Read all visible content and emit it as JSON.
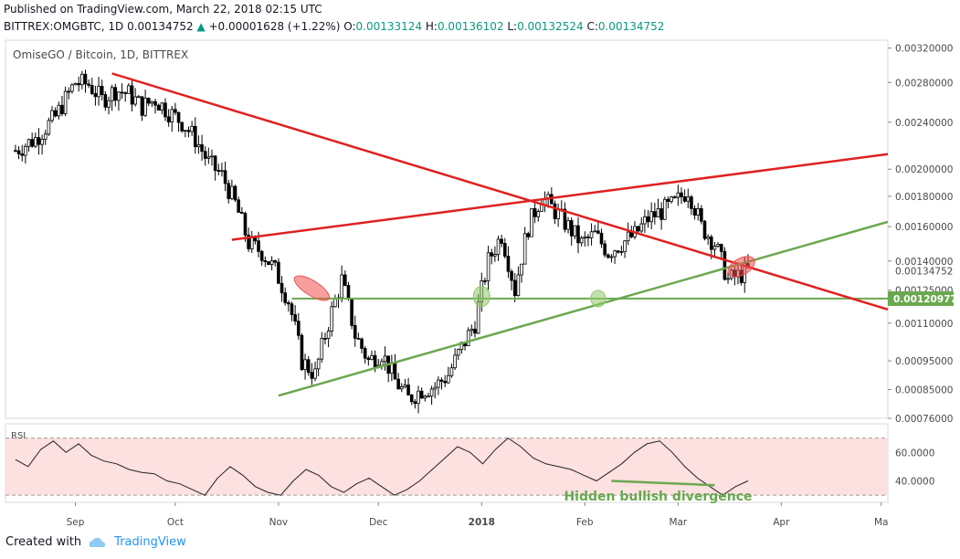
{
  "header": {
    "published": "Published on TradingView.com, March 22, 2018 02:15 UTC",
    "symbol": "BITTREX:OMGBTC, 1D",
    "last": "0.00134752",
    "change": "+0.00001628 (+1.22%)",
    "o_label": "O:",
    "o": "0.00133124",
    "h_label": "H:",
    "h": "0.00136102",
    "l_label": "L:",
    "l": "0.00132524",
    "c_label": "C:",
    "c": "0.00134752"
  },
  "footer": {
    "created_with": "Created with",
    "brand": "TradingView"
  },
  "colors": {
    "up": "#089981",
    "trend_red": "#e02020",
    "trend_green": "#6aa84f",
    "rsi_band": "#fde0e0"
  },
  "chart_data": {
    "type": "candlestick",
    "title": "OmiseGO / Bitcoin, 1D, BITTREX",
    "x_ticks": [
      "Sep",
      "Oct",
      "Nov",
      "Dec",
      "2018",
      "Feb",
      "Mar",
      "Apr",
      "Ma"
    ],
    "y_ticks": [
      "0.00320000",
      "0.00280000",
      "0.00240000",
      "0.00200000",
      "0.00180000",
      "0.00160000",
      "0.00140000",
      "0.00125000",
      "0.00110000",
      "0.00095000",
      "0.00085000",
      "0.00076000"
    ],
    "ylim": [
      0.00076,
      0.0033
    ],
    "last_price_label": "0.00134752",
    "hline_label": "0.00120977",
    "close_path": [
      [
        "2017-08-14",
        0.00215
      ],
      [
        "2017-08-20",
        0.00225
      ],
      [
        "2017-08-26",
        0.00245
      ],
      [
        "2017-09-01",
        0.0028
      ],
      [
        "2017-09-05",
        0.00278
      ],
      [
        "2017-09-09",
        0.00262
      ],
      [
        "2017-09-13",
        0.00272
      ],
      [
        "2017-09-17",
        0.00268
      ],
      [
        "2017-09-21",
        0.00255
      ],
      [
        "2017-09-25",
        0.00262
      ],
      [
        "2017-09-29",
        0.0025
      ],
      [
        "2017-10-03",
        0.0024
      ],
      [
        "2017-10-07",
        0.00225
      ],
      [
        "2017-10-11",
        0.00205
      ],
      [
        "2017-10-15",
        0.00195
      ],
      [
        "2017-10-19",
        0.00175
      ],
      [
        "2017-10-23",
        0.0015
      ],
      [
        "2017-10-27",
        0.00145
      ],
      [
        "2017-10-31",
        0.00135
      ],
      [
        "2017-11-04",
        0.0012
      ],
      [
        "2017-11-08",
        0.00095
      ],
      [
        "2017-11-12",
        0.0009
      ],
      [
        "2017-11-16",
        0.0011
      ],
      [
        "2017-11-20",
        0.0013
      ],
      [
        "2017-11-24",
        0.00105
      ],
      [
        "2017-11-28",
        0.00095
      ],
      [
        "2017-12-02",
        0.00098
      ],
      [
        "2017-12-06",
        0.00088
      ],
      [
        "2017-12-10",
        0.00082
      ],
      [
        "2017-12-14",
        0.00085
      ],
      [
        "2017-12-18",
        0.00086
      ],
      [
        "2017-12-22",
        0.0009
      ],
      [
        "2017-12-26",
        0.001
      ],
      [
        "2017-12-30",
        0.0011
      ],
      [
        "2018-01-03",
        0.0014
      ],
      [
        "2018-01-07",
        0.00155
      ],
      [
        "2018-01-11",
        0.00125
      ],
      [
        "2018-01-15",
        0.0016
      ],
      [
        "2018-01-19",
        0.0018
      ],
      [
        "2018-01-23",
        0.0017
      ],
      [
        "2018-01-27",
        0.0016
      ],
      [
        "2018-01-31",
        0.0015
      ],
      [
        "2018-02-04",
        0.00155
      ],
      [
        "2018-02-08",
        0.00145
      ],
      [
        "2018-02-12",
        0.0015
      ],
      [
        "2018-02-16",
        0.00155
      ],
      [
        "2018-02-20",
        0.00165
      ],
      [
        "2018-02-24",
        0.0017
      ],
      [
        "2018-02-28",
        0.00175
      ],
      [
        "2018-03-04",
        0.00185
      ],
      [
        "2018-03-08",
        0.0016
      ],
      [
        "2018-03-12",
        0.0015
      ],
      [
        "2018-03-16",
        0.0013
      ],
      [
        "2018-03-20",
        0.00133
      ],
      [
        "2018-03-22",
        0.00135
      ]
    ],
    "rsi": {
      "label": "RSI",
      "ticks": [
        "60.0000",
        "40.0000"
      ],
      "ylim": [
        25,
        80
      ],
      "band": [
        30,
        70
      ],
      "values": [
        55,
        50,
        62,
        68,
        60,
        66,
        58,
        54,
        52,
        48,
        46,
        45,
        40,
        38,
        34,
        30,
        42,
        50,
        44,
        36,
        32,
        30,
        40,
        48,
        44,
        36,
        32,
        38,
        42,
        36,
        30,
        34,
        40,
        48,
        56,
        64,
        60,
        52,
        62,
        70,
        64,
        56,
        52,
        50,
        48,
        44,
        40,
        46,
        52,
        60,
        66,
        68,
        60,
        50,
        42,
        36,
        30,
        36,
        40
      ]
    },
    "annotations": [
      {
        "text": "Hidden bullish divergence",
        "color": "#6aa84f"
      }
    ]
  }
}
